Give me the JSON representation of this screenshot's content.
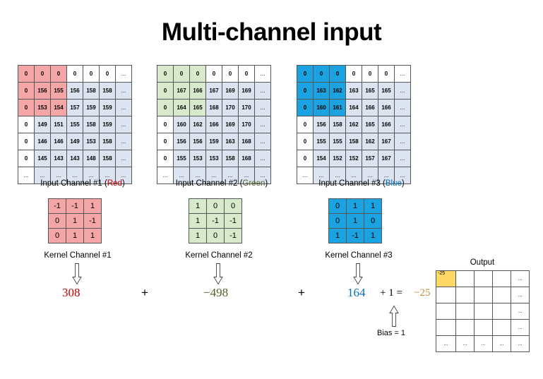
{
  "title": "Multi-channel input",
  "colors": {
    "red_light": "#f4a6a6",
    "red_border": "#e89090",
    "green_light": "#d8eacc",
    "blue": "#1aa3e0",
    "pale_blue": "#dce3f1",
    "red_text": "#c00000",
    "green_text": "#4f6228",
    "blue_text": "#0070c0",
    "result_gold": "#c09030",
    "output_highlight": "#ffd966"
  },
  "channels": [
    {
      "caption_prefix": "Input Channel #1 (",
      "color_word": "Red",
      "caption_suffix": ")",
      "rows": [
        [
          "0",
          "0",
          "0",
          "0",
          "0",
          "0",
          "..."
        ],
        [
          "0",
          "156",
          "155",
          "156",
          "158",
          "158",
          "..."
        ],
        [
          "0",
          "153",
          "154",
          "157",
          "159",
          "159",
          "..."
        ],
        [
          "0",
          "149",
          "151",
          "155",
          "158",
          "159",
          "..."
        ],
        [
          "0",
          "146",
          "146",
          "149",
          "153",
          "158",
          "..."
        ],
        [
          "0",
          "145",
          "143",
          "143",
          "148",
          "158",
          "..."
        ],
        [
          "...",
          "...",
          "...",
          "...",
          "...",
          "...",
          "..."
        ]
      ],
      "kernel_caption": "Kernel Channel #1",
      "kernel": [
        [
          "-1",
          "-1",
          "1"
        ],
        [
          "0",
          "1",
          "-1"
        ],
        [
          "0",
          "1",
          "1"
        ]
      ],
      "result": "308"
    },
    {
      "caption_prefix": "Input Channel #2 (",
      "color_word": "Green",
      "caption_suffix": ")",
      "rows": [
        [
          "0",
          "0",
          "0",
          "0",
          "0",
          "0",
          "..."
        ],
        [
          "0",
          "167",
          "166",
          "167",
          "169",
          "169",
          "..."
        ],
        [
          "0",
          "164",
          "165",
          "168",
          "170",
          "170",
          "..."
        ],
        [
          "0",
          "160",
          "162",
          "166",
          "169",
          "170",
          "..."
        ],
        [
          "0",
          "156",
          "156",
          "159",
          "163",
          "168",
          "..."
        ],
        [
          "0",
          "155",
          "153",
          "153",
          "158",
          "168",
          "..."
        ],
        [
          "...",
          "...",
          "...",
          "...",
          "...",
          "...",
          "..."
        ]
      ],
      "kernel_caption": "Kernel Channel #2",
      "kernel": [
        [
          "1",
          "0",
          "0"
        ],
        [
          "1",
          "-1",
          "-1"
        ],
        [
          "1",
          "0",
          "-1"
        ]
      ],
      "result": "−498"
    },
    {
      "caption_prefix": "Input Channel #3 (",
      "color_word": "Blue",
      "caption_suffix": ")",
      "rows": [
        [
          "0",
          "0",
          "0",
          "0",
          "0",
          "0",
          "..."
        ],
        [
          "0",
          "163",
          "162",
          "163",
          "165",
          "165",
          "..."
        ],
        [
          "0",
          "160",
          "161",
          "164",
          "166",
          "166",
          "..."
        ],
        [
          "0",
          "156",
          "158",
          "162",
          "165",
          "166",
          "..."
        ],
        [
          "0",
          "155",
          "155",
          "158",
          "162",
          "167",
          "..."
        ],
        [
          "0",
          "154",
          "152",
          "152",
          "157",
          "167",
          "..."
        ],
        [
          "...",
          "...",
          "...",
          "...",
          "...",
          "...",
          "..."
        ]
      ],
      "kernel_caption": "Kernel Channel #3",
      "kernel": [
        [
          "0",
          "1",
          "1"
        ],
        [
          "0",
          "1",
          "0"
        ],
        [
          "1",
          "-1",
          "1"
        ]
      ],
      "result": "164"
    }
  ],
  "equation": {
    "plus1": "+",
    "plus2": "+",
    "bias_term": "+ 1 =",
    "result": "−25"
  },
  "bias_label": "Bias = 1",
  "output": {
    "title": "Output",
    "rows": [
      [
        "-25",
        "",
        "",
        "",
        "..."
      ],
      [
        "",
        "",
        "",
        "",
        "..."
      ],
      [
        "",
        "",
        "",
        "",
        "..."
      ],
      [
        "",
        "",
        "",
        "",
        "..."
      ],
      [
        "...",
        "...",
        "...",
        "...",
        "..."
      ]
    ]
  }
}
